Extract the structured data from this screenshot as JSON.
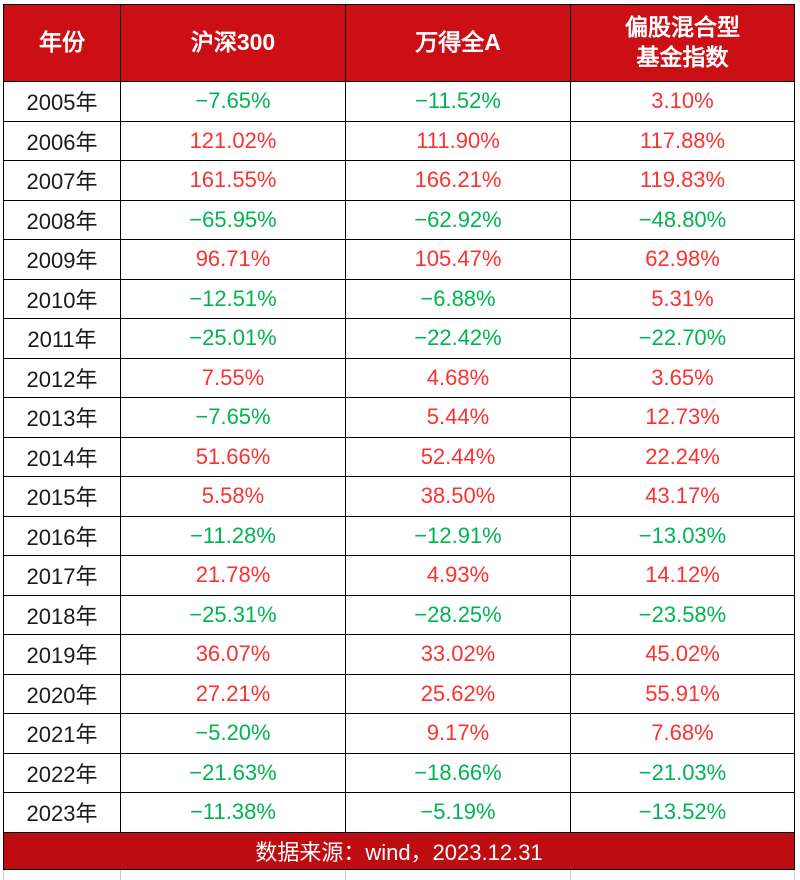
{
  "colors": {
    "header_bg": "#cc0e15",
    "footer_bg": "#be0d10",
    "positive_value": "#fa3232",
    "negative_value": "#00b551",
    "year_text": "#1a1a1a",
    "header_text": "#ffffff",
    "border": "#000000"
  },
  "header": {
    "col_year": "年份",
    "col_hs300": "沪深300",
    "col_wind_a": "万得全A",
    "col_fund": "偏股混合型\n基金指数"
  },
  "footer": {
    "source_label": "数据来源：wind，2023.12.31"
  },
  "chart_data": {
    "type": "table",
    "columns": [
      "年份",
      "沪深300",
      "万得全A",
      "偏股混合型基金指数"
    ],
    "rows": [
      {
        "year": "2005年",
        "values": [
          "−7.65%",
          "−11.52%",
          "3.10%"
        ]
      },
      {
        "year": "2006年",
        "values": [
          "121.02%",
          "111.90%",
          "117.88%"
        ]
      },
      {
        "year": "2007年",
        "values": [
          "161.55%",
          "166.21%",
          "119.83%"
        ]
      },
      {
        "year": "2008年",
        "values": [
          "−65.95%",
          "−62.92%",
          "−48.80%"
        ]
      },
      {
        "year": "2009年",
        "values": [
          "96.71%",
          "105.47%",
          "62.98%"
        ]
      },
      {
        "year": "2010年",
        "values": [
          "−12.51%",
          "−6.88%",
          "5.31%"
        ]
      },
      {
        "year": "2011年",
        "values": [
          "−25.01%",
          "−22.42%",
          "−22.70%"
        ]
      },
      {
        "year": "2012年",
        "values": [
          "7.55%",
          "4.68%",
          "3.65%"
        ]
      },
      {
        "year": "2013年",
        "values": [
          "−7.65%",
          "5.44%",
          "12.73%"
        ]
      },
      {
        "year": "2014年",
        "values": [
          "51.66%",
          "52.44%",
          "22.24%"
        ]
      },
      {
        "year": "2015年",
        "values": [
          "5.58%",
          "38.50%",
          "43.17%"
        ]
      },
      {
        "year": "2016年",
        "values": [
          "−11.28%",
          "−12.91%",
          "−13.03%"
        ]
      },
      {
        "year": "2017年",
        "values": [
          "21.78%",
          "4.93%",
          "14.12%"
        ]
      },
      {
        "year": "2018年",
        "values": [
          "−25.31%",
          "−28.25%",
          "−23.58%"
        ]
      },
      {
        "year": "2019年",
        "values": [
          "36.07%",
          "33.02%",
          "45.02%"
        ]
      },
      {
        "year": "2020年",
        "values": [
          "27.21%",
          "25.62%",
          "55.91%"
        ]
      },
      {
        "year": "2021年",
        "values": [
          "−5.20%",
          "9.17%",
          "7.68%"
        ]
      },
      {
        "year": "2022年",
        "values": [
          "−21.63%",
          "−18.66%",
          "−21.03%"
        ]
      },
      {
        "year": "2023年",
        "values": [
          "−11.38%",
          "−5.19%",
          "−13.52%"
        ]
      }
    ],
    "value_color_coding": {
      "positive": "red",
      "negative": "green"
    },
    "source_note": "数据来源：wind，2023.12.31"
  }
}
